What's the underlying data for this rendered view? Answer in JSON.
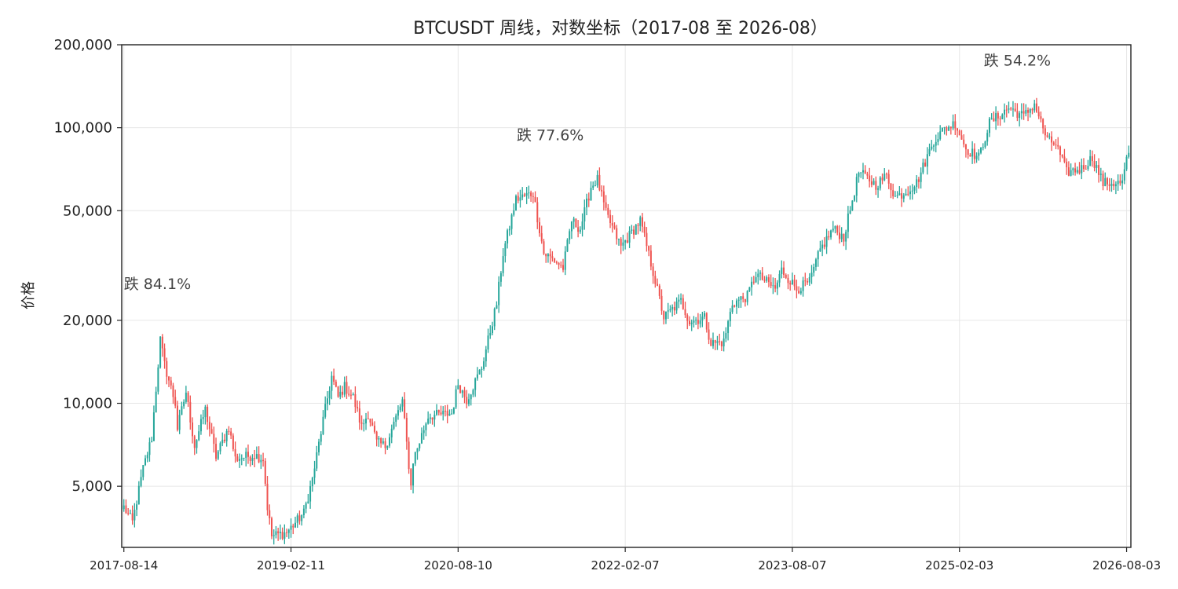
{
  "chart_data": {
    "type": "candlestick",
    "title": "BTCUSDT 周线，对数坐标（2017-08 至 2026-08）",
    "ylabel": "价格",
    "xlabel": "",
    "y_scale": "log",
    "ylim": [
      3000,
      200000
    ],
    "yticks": [
      {
        "value": 5000,
        "label": "5,000"
      },
      {
        "value": 10000,
        "label": "10,000"
      },
      {
        "value": 20000,
        "label": "20,000"
      },
      {
        "value": 50000,
        "label": "50,000"
      },
      {
        "value": 100000,
        "label": "100,000"
      },
      {
        "value": 200000,
        "label": "200,000"
      }
    ],
    "xlim": [
      "2017-08-07",
      "2026-08-17"
    ],
    "xticks": [
      "2017-08-14",
      "2019-02-11",
      "2020-08-10",
      "2022-02-07",
      "2023-08-07",
      "2025-02-03",
      "2026-08-03"
    ],
    "grid": true,
    "colors": {
      "up": "#26a69a",
      "down": "#ef5350"
    },
    "annotations": [
      {
        "text": "跌 84.1%",
        "x": "2017-08-14",
        "y": 26000
      },
      {
        "text": "跌 77.6%",
        "x": "2021-06-07",
        "y": 90000
      },
      {
        "text": "跌 54.2%",
        "x": "2025-08-11",
        "y": 168000
      }
    ],
    "anchors": [
      [
        "2017-08-14",
        4200
      ],
      [
        "2017-09-11",
        3700
      ],
      [
        "2017-10-16",
        5800
      ],
      [
        "2017-11-13",
        7500
      ],
      [
        "2017-12-11",
        17000
      ],
      [
        "2017-12-25",
        13800
      ],
      [
        "2018-01-29",
        10000
      ],
      [
        "2018-02-05",
        8100
      ],
      [
        "2018-03-05",
        11000
      ],
      [
        "2018-04-02",
        7000
      ],
      [
        "2018-05-07",
        9500
      ],
      [
        "2018-06-11",
        6400
      ],
      [
        "2018-07-23",
        8200
      ],
      [
        "2018-08-13",
        6300
      ],
      [
        "2018-10-15",
        6500
      ],
      [
        "2018-11-12",
        6300
      ],
      [
        "2018-11-26",
        4200
      ],
      [
        "2018-12-10",
        3300
      ],
      [
        "2019-01-28",
        3400
      ],
      [
        "2019-03-25",
        4000
      ],
      [
        "2019-04-22",
        5300
      ],
      [
        "2019-05-27",
        8700
      ],
      [
        "2019-06-24",
        12500
      ],
      [
        "2019-07-15",
        10500
      ],
      [
        "2019-08-05",
        11500
      ],
      [
        "2019-09-02",
        10500
      ],
      [
        "2019-09-30",
        8200
      ],
      [
        "2019-10-21",
        9200
      ],
      [
        "2019-11-18",
        7200
      ],
      [
        "2019-12-16",
        7000
      ],
      [
        "2020-01-27",
        9300
      ],
      [
        "2020-02-10",
        10200
      ],
      [
        "2020-03-09",
        5000
      ],
      [
        "2020-03-16",
        6200
      ],
      [
        "2020-05-04",
        9000
      ],
      [
        "2020-07-20",
        9200
      ],
      [
        "2020-08-10",
        11800
      ],
      [
        "2020-09-07",
        10300
      ],
      [
        "2020-10-26",
        13500
      ],
      [
        "2020-12-14",
        23000
      ],
      [
        "2021-01-04",
        35000
      ],
      [
        "2021-02-15",
        55000
      ],
      [
        "2021-04-12",
        58000
      ],
      [
        "2021-05-17",
        35000
      ],
      [
        "2021-06-21",
        33000
      ],
      [
        "2021-07-19",
        31000
      ],
      [
        "2021-08-16",
        46000
      ],
      [
        "2021-09-13",
        43000
      ],
      [
        "2021-10-18",
        61000
      ],
      [
        "2021-11-08",
        65000
      ],
      [
        "2021-12-06",
        49000
      ],
      [
        "2022-01-24",
        37000
      ],
      [
        "2022-03-28",
        46000
      ],
      [
        "2022-05-09",
        30000
      ],
      [
        "2022-06-13",
        20500
      ],
      [
        "2022-08-08",
        23500
      ],
      [
        "2022-09-05",
        19800
      ],
      [
        "2022-10-24",
        20500
      ],
      [
        "2022-11-14",
        16500
      ],
      [
        "2022-12-26",
        16700
      ],
      [
        "2023-01-23",
        23000
      ],
      [
        "2023-03-13",
        24500
      ],
      [
        "2023-04-10",
        29500
      ],
      [
        "2023-06-12",
        26000
      ],
      [
        "2023-07-03",
        30500
      ],
      [
        "2023-08-21",
        26000
      ],
      [
        "2023-10-02",
        27500
      ],
      [
        "2023-11-06",
        36000
      ],
      [
        "2023-12-18",
        43000
      ],
      [
        "2024-01-22",
        40000
      ],
      [
        "2024-03-11",
        69000
      ],
      [
        "2024-05-06",
        62000
      ],
      [
        "2024-06-10",
        67000
      ],
      [
        "2024-07-08",
        56000
      ],
      [
        "2024-08-05",
        58000
      ],
      [
        "2024-09-16",
        63000
      ],
      [
        "2024-11-11",
        90000
      ],
      [
        "2024-12-16",
        99000
      ],
      [
        "2025-01-20",
        104000
      ],
      [
        "2025-02-24",
        84000
      ],
      [
        "2025-04-07",
        78000
      ],
      [
        "2025-05-12",
        104000
      ],
      [
        "2025-07-14",
        118000
      ],
      [
        "2025-09-01",
        110000
      ],
      [
        "2025-10-06",
        122000
      ],
      [
        "2025-11-17",
        90000
      ],
      [
        "2025-12-15",
        87000
      ],
      [
        "2026-01-19",
        69000
      ],
      [
        "2026-03-09",
        71000
      ],
      [
        "2026-04-13",
        78000
      ],
      [
        "2026-05-18",
        63000
      ],
      [
        "2026-07-20",
        63000
      ],
      [
        "2026-08-03",
        77000
      ],
      [
        "2026-08-10",
        78000
      ]
    ]
  }
}
